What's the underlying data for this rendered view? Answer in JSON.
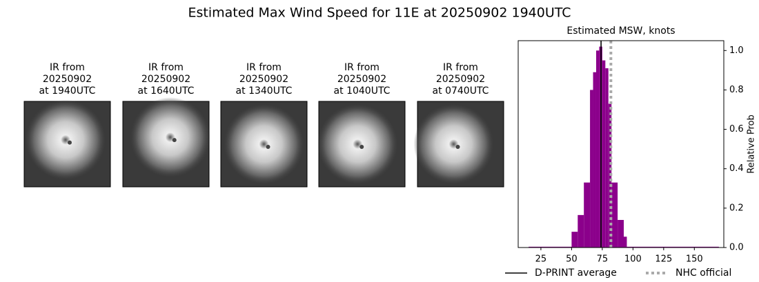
{
  "title": "Estimated Max Wind Speed for 11E at 20250902 1940UTC",
  "panels": [
    {
      "lines": [
        "IR from",
        "20250902",
        "at 1940UTC"
      ]
    },
    {
      "lines": [
        "IR from",
        "20250902",
        "at 1640UTC"
      ]
    },
    {
      "lines": [
        "IR from",
        "20250902",
        "at 1340UTC"
      ]
    },
    {
      "lines": [
        "IR from",
        "20250902",
        "at 1040UTC"
      ]
    },
    {
      "lines": [
        "IR from",
        "20250902",
        "at 0740UTC"
      ]
    }
  ],
  "chart_data": {
    "type": "histogram",
    "title": "Estimated MSW, knots",
    "y_label": "Relative Prob",
    "color": "#8b008b",
    "bins": [
      15,
      50,
      55,
      60,
      65,
      67.5,
      70,
      72.5,
      75,
      77.5,
      80,
      82.5,
      87.5,
      92.5,
      95,
      170
    ],
    "values": [
      0.004,
      0.08,
      0.165,
      0.33,
      0.8,
      0.89,
      1.0,
      1.02,
      0.95,
      0.91,
      0.73,
      0.33,
      0.14,
      0.055,
      0.004
    ],
    "xlim": [
      6.5,
      174
    ],
    "xticks": [
      25,
      50,
      75,
      100,
      125,
      150
    ],
    "ylim": [
      0,
      1.05
    ],
    "yticks": [
      {
        "value": 0,
        "label": "0.0"
      },
      {
        "value": 0.2,
        "label": "0.2"
      },
      {
        "value": 0.4,
        "label": "0.4"
      },
      {
        "value": 0.6,
        "label": "0.6"
      },
      {
        "value": 0.8,
        "label": "0.8"
      },
      {
        "value": 1.0,
        "label": "1.0"
      }
    ],
    "vlines": [
      {
        "name": "D-PRINT average",
        "x": 74,
        "color": "#000000",
        "style": "solid"
      },
      {
        "name": "NHC official",
        "x": 82,
        "color": "#aaaaaa",
        "style": "dotted"
      }
    ]
  }
}
